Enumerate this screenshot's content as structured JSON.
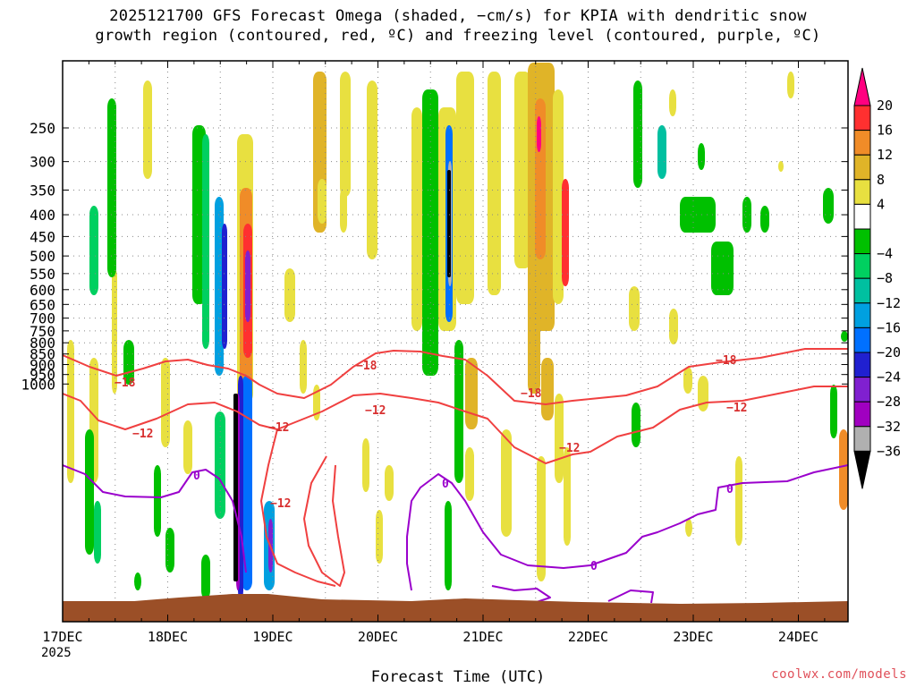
{
  "title_line1": "2025121700 GFS Forecast Omega (shaded, −cm/s) for KPIA with dendritic snow",
  "title_line2": "growth region (contoured, red, ºC) and freezing level (contoured, purple, ºC)",
  "xlabel": "Forecast Time (UTC)",
  "credit": "coolwx.com/models",
  "year_label": "2025",
  "colors": {
    "contour_red": "#f04040",
    "contour_purple": "#9a00cc",
    "terrain": "#9b4f27",
    "grid": "#888888"
  },
  "chart_data": {
    "type": "heatmap",
    "x_ticks": [
      "17DEC",
      "18DEC",
      "19DEC",
      "20DEC",
      "21DEC",
      "22DEC",
      "23DEC",
      "24DEC"
    ],
    "y_ticks": [
      250,
      300,
      350,
      400,
      450,
      500,
      550,
      600,
      650,
      700,
      750,
      800,
      850,
      900,
      950,
      1000
    ],
    "colorbar": [
      {
        "label": "20",
        "color": "#ff0080"
      },
      {
        "label": "16",
        "color": "#ff3030"
      },
      {
        "label": "12",
        "color": "#f08c28"
      },
      {
        "label": "8",
        "color": "#e0b428"
      },
      {
        "label": "4",
        "color": "#e8e040"
      },
      {
        "label": "",
        "color": "#ffffff"
      },
      {
        "label": "−4",
        "color": "#00c000"
      },
      {
        "label": "−8",
        "color": "#00d060"
      },
      {
        "label": "−12",
        "color": "#00c0a0"
      },
      {
        "label": "−16",
        "color": "#00a0e0"
      },
      {
        "label": "−20",
        "color": "#0070ff"
      },
      {
        "label": "−24",
        "color": "#2020d0"
      },
      {
        "label": "−28",
        "color": "#8020d0"
      },
      {
        "label": "−32",
        "color": "#a000c0"
      },
      {
        "label": "−36",
        "color": "#b0b0b0"
      }
    ],
    "contour_labels": [
      {
        "text": "−18",
        "color": "red"
      },
      {
        "text": "−12",
        "color": "red"
      },
      {
        "text": "0",
        "color": "purple"
      }
    ]
  }
}
